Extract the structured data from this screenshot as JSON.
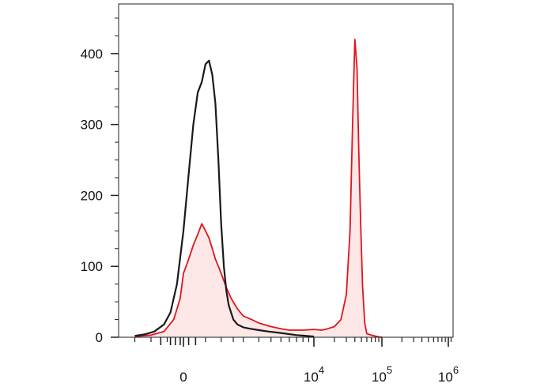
{
  "chart_data": {
    "type": "area",
    "title": "",
    "xlabel": "",
    "ylabel": "",
    "x_scale": "biexponential",
    "xlim": [
      -2000,
      1200000
    ],
    "ylim": [
      0,
      470
    ],
    "grid": false,
    "legend": "none",
    "y_ticks": [
      {
        "value": 0,
        "label": "0"
      },
      {
        "value": 100,
        "label": "100"
      },
      {
        "value": 200,
        "label": "200"
      },
      {
        "value": 300,
        "label": "300"
      },
      {
        "value": 400,
        "label": "400"
      }
    ],
    "x_ticks": [
      {
        "value": 0,
        "base": "0",
        "exp": ""
      },
      {
        "value": 10000,
        "base": "10",
        "exp": "4"
      },
      {
        "value": 100000,
        "base": "10",
        "exp": "5"
      },
      {
        "value": 1000000,
        "base": "10",
        "exp": "6"
      }
    ],
    "series": [
      {
        "color": "#1a1a1a",
        "fill": "none",
        "x": [
          -1500,
          -1200,
          -900,
          -600,
          -400,
          -200,
          0,
          100,
          200,
          300,
          400,
          500,
          600,
          700,
          800,
          900,
          1000,
          1100,
          1200,
          1300,
          1400,
          1500,
          1700,
          2000,
          2400,
          3000,
          3800,
          5000,
          7000,
          10000
        ],
        "y": [
          2,
          4,
          8,
          18,
          35,
          75,
          150,
          230,
          300,
          345,
          360,
          385,
          390,
          370,
          330,
          250,
          160,
          100,
          65,
          45,
          35,
          25,
          18,
          14,
          12,
          10,
          8,
          6,
          3,
          1
        ]
      },
      {
        "color": "#e0141e",
        "fill": "#fde7e7",
        "x": [
          -1500,
          -1000,
          -600,
          -300,
          -100,
          0,
          100,
          200,
          300,
          400,
          500,
          600,
          700,
          800,
          900,
          1000,
          1200,
          1400,
          1700,
          2000,
          2500,
          3000,
          4000,
          5000,
          6000,
          8000,
          10000,
          13000,
          16000,
          20000,
          25000,
          30000,
          34000,
          37000,
          40000,
          43000,
          46000,
          49000,
          52000,
          56000,
          60000,
          70000,
          85000,
          100000
        ],
        "y": [
          1,
          3,
          8,
          25,
          55,
          90,
          110,
          130,
          145,
          160,
          150,
          140,
          125,
          110,
          100,
          90,
          70,
          55,
          40,
          30,
          25,
          20,
          15,
          12,
          10,
          10,
          11,
          10,
          12,
          15,
          25,
          60,
          150,
          300,
          420,
          380,
          250,
          150,
          70,
          20,
          5,
          3,
          1,
          0
        ]
      }
    ]
  }
}
